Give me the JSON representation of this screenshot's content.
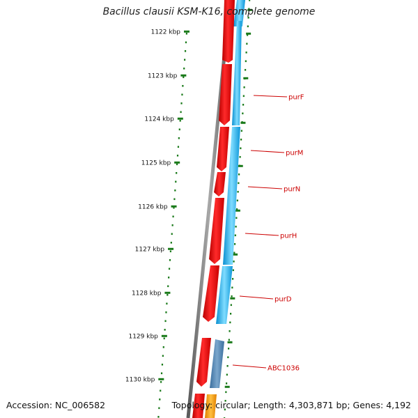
{
  "title": "Bacillus clausii KSM-K16, complete genome",
  "accession": "Accession: NC_006582",
  "topology": "Topology: circular; Length: 4,303,871 bp; Genes: 4,192",
  "colors": {
    "forward_gene": "#e00000",
    "reverse_gene": "#1eb4f0",
    "reverse_gene_dark": "#4a82b4",
    "backbone": "#808080",
    "tick": "#1a7a1a",
    "label": "#cc0000"
  },
  "scale_labels": [
    "1122 kbp",
    "1123 kbp",
    "1124 kbp",
    "1125 kbp",
    "1126 kbp",
    "1127 kbp",
    "1128 kbp",
    "1129 kbp",
    "1130 kbp"
  ],
  "gene_labels": [
    "purF",
    "purM",
    "purN",
    "purH",
    "purD",
    "ABC1036"
  ]
}
